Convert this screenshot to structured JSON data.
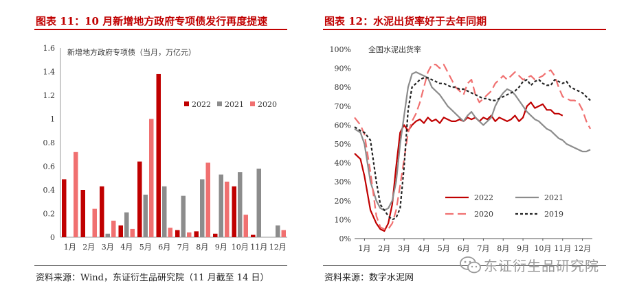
{
  "left_panel": {
    "title": "图表 11：10 月新增地方政府专项债发行再度提速",
    "source": "资料来源：Wind，东证衍生品研究院（11 月截至 14 日）"
  },
  "right_panel": {
    "title": "图表 12：水泥出货率好于去年同期",
    "source": "资料来源：数字水泥网"
  },
  "watermark": {
    "text": "东证衍生品研究院",
    "icon": "wechat-icon"
  },
  "chart_data": [
    {
      "type": "bar",
      "title": "新增地方政府专项债（当月，万亿元）",
      "categories": [
        "1月",
        "2月",
        "3月",
        "4月",
        "5月",
        "6月",
        "7月",
        "8月",
        "9月",
        "10月",
        "11月",
        "12月"
      ],
      "ylim": [
        0,
        1.6
      ],
      "yticks": [
        0,
        0.2,
        0.4,
        0.6,
        0.8,
        1,
        1.2,
        1.4,
        1.6
      ],
      "ytick_labels": [
        "0",
        "0.2",
        "0.4",
        "0.6",
        "0.8",
        "1",
        "1.2",
        "1.4",
        "1.6"
      ],
      "legend_position": "right",
      "series": [
        {
          "name": "2022",
          "color": "#c00000",
          "values": [
            0.49,
            0.4,
            0.43,
            0.1,
            0.64,
            1.38,
            0.06,
            0.05,
            0.03,
            0.43,
            0.02,
            null
          ]
        },
        {
          "name": "2021",
          "color": "#8c8c8c",
          "values": [
            0.0,
            0.0,
            0.03,
            0.21,
            0.36,
            0.43,
            0.35,
            0.49,
            0.53,
            0.55,
            0.58,
            0.1
          ]
        },
        {
          "name": "2020",
          "color": "#f07070",
          "values": [
            0.72,
            0.24,
            0.14,
            0.07,
            1.0,
            0.08,
            0.04,
            0.63,
            0.47,
            0.19,
            null,
            0.06
          ]
        }
      ]
    },
    {
      "type": "line",
      "title": "全国水泥出货率",
      "x_labels": [
        "1月",
        "2月",
        "3月",
        "4月",
        "5月",
        "6月",
        "7月",
        "8月",
        "9月",
        "10月",
        "11月",
        "12月"
      ],
      "x_range": [
        0.5,
        12.5
      ],
      "ylim": [
        0,
        100
      ],
      "yticks": [
        0,
        10,
        20,
        30,
        40,
        50,
        60,
        70,
        80,
        90,
        100
      ],
      "ytick_labels": [
        "0%",
        "10%",
        "20%",
        "30%",
        "40%",
        "50%",
        "60%",
        "70%",
        "80%",
        "90%",
        "100%"
      ],
      "legend_position": "bottom-center",
      "series": [
        {
          "name": "2022",
          "color": "#c00000",
          "dash": "solid",
          "x": [
            0.5,
            0.8,
            1.0,
            1.3,
            1.6,
            1.8,
            2.0,
            2.2,
            2.4,
            2.6,
            2.8,
            3.0,
            3.2,
            3.4,
            3.6,
            3.8,
            4.0,
            4.2,
            4.4,
            4.6,
            4.8,
            5.0,
            5.2,
            5.4,
            5.6,
            5.8,
            6.0,
            6.2,
            6.4,
            6.6,
            6.8,
            7.0,
            7.2,
            7.4,
            7.6,
            7.8,
            8.0,
            8.2,
            8.4,
            8.6,
            8.8,
            9.0,
            9.2,
            9.4,
            9.6,
            9.8,
            10.0,
            10.2,
            10.4,
            10.6,
            10.8,
            11.0
          ],
          "y": [
            45,
            42,
            33,
            15,
            8,
            5,
            4,
            8,
            18,
            38,
            56,
            60,
            57,
            60,
            62,
            63,
            61,
            64,
            62,
            63,
            61,
            64,
            63,
            62,
            62,
            63,
            62,
            64,
            63,
            64,
            62,
            64,
            63,
            65,
            62,
            64,
            63,
            62,
            63,
            65,
            62,
            64,
            70,
            72,
            69,
            70,
            71,
            68,
            68,
            66,
            66,
            65
          ]
        },
        {
          "name": "2021",
          "color": "#8c8c8c",
          "dash": "solid",
          "x": [
            0.5,
            0.8,
            1.0,
            1.3,
            1.6,
            1.8,
            2.0,
            2.2,
            2.4,
            2.6,
            2.8,
            3.0,
            3.2,
            3.4,
            3.6,
            3.8,
            4.0,
            4.2,
            4.4,
            4.6,
            4.8,
            5.0,
            5.2,
            5.4,
            5.6,
            5.8,
            6.0,
            6.2,
            6.4,
            6.6,
            6.8,
            7.0,
            7.2,
            7.4,
            7.6,
            7.8,
            8.0,
            8.2,
            8.4,
            8.6,
            8.8,
            9.0,
            9.2,
            9.4,
            9.6,
            9.8,
            10.0,
            10.2,
            10.4,
            10.6,
            10.8,
            11.0,
            11.2,
            11.4,
            11.6,
            11.8,
            12.0,
            12.2,
            12.4
          ],
          "y": [
            58,
            56,
            50,
            30,
            20,
            16,
            15,
            16,
            20,
            30,
            50,
            65,
            80,
            87,
            88,
            87,
            86,
            85,
            80,
            78,
            76,
            73,
            70,
            68,
            66,
            64,
            62,
            65,
            67,
            64,
            62,
            60,
            62,
            64,
            70,
            74,
            77,
            79,
            78,
            76,
            73,
            70,
            67,
            65,
            63,
            62,
            60,
            58,
            57,
            55,
            53,
            52,
            50,
            49,
            48,
            47,
            46,
            46,
            47
          ]
        },
        {
          "name": "2020",
          "color": "#f07070",
          "dash": "long-dash",
          "x": [
            0.5,
            0.8,
            1.0,
            1.3,
            1.6,
            1.8,
            2.0,
            2.2,
            2.4,
            2.6,
            2.8,
            3.0,
            3.2,
            3.4,
            3.6,
            3.8,
            4.0,
            4.2,
            4.4,
            4.6,
            4.8,
            5.0,
            5.2,
            5.4,
            5.6,
            5.8,
            6.0,
            6.2,
            6.4,
            6.6,
            6.8,
            7.0,
            7.2,
            7.4,
            7.6,
            7.8,
            8.0,
            8.2,
            8.4,
            8.6,
            8.8,
            9.0,
            9.2,
            9.4,
            9.6,
            9.8,
            10.0,
            10.2,
            10.4,
            10.6,
            10.8,
            11.0,
            11.2,
            11.4,
            11.6,
            11.8,
            12.0,
            12.2,
            12.4
          ],
          "y": [
            64,
            60,
            55,
            35,
            12,
            6,
            5,
            5,
            8,
            15,
            28,
            42,
            56,
            62,
            66,
            72,
            80,
            88,
            92,
            92,
            90,
            92,
            88,
            84,
            80,
            78,
            76,
            82,
            84,
            76,
            72,
            74,
            76,
            78,
            82,
            84,
            86,
            84,
            86,
            88,
            86,
            84,
            85,
            86,
            84,
            85,
            86,
            88,
            89,
            86,
            80,
            75,
            74,
            73,
            73,
            72,
            68,
            62,
            58
          ]
        },
        {
          "name": "2019",
          "color": "#222222",
          "dash": "short-dash",
          "x": [
            0.5,
            0.8,
            1.0,
            1.3,
            1.6,
            1.8,
            2.0,
            2.2,
            2.4,
            2.6,
            2.8,
            3.0,
            3.2,
            3.4,
            3.6,
            3.8,
            4.0,
            4.2,
            4.4,
            4.6,
            4.8,
            5.0,
            5.2,
            5.4,
            5.6,
            5.8,
            6.0,
            6.2,
            6.4,
            6.6,
            6.8,
            7.0,
            7.2,
            7.4,
            7.6,
            7.8,
            8.0,
            8.2,
            8.4,
            8.6,
            8.8,
            9.0,
            9.2,
            9.4,
            9.6,
            9.8,
            10.0,
            10.2,
            10.4,
            10.6,
            10.8,
            11.0,
            11.2,
            11.4,
            11.6,
            11.8,
            12.0,
            12.2,
            12.4
          ],
          "y": [
            59,
            57,
            56,
            52,
            30,
            18,
            15,
            12,
            10,
            11,
            16,
            38,
            68,
            80,
            82,
            84,
            85,
            85,
            84,
            83,
            82,
            82,
            81,
            80,
            80,
            79,
            79,
            78,
            77,
            76,
            75,
            74,
            74,
            73,
            73,
            74,
            75,
            76,
            77,
            78,
            80,
            83,
            84,
            81,
            83,
            84,
            82,
            81,
            81,
            84,
            83,
            82,
            83,
            80,
            79,
            78,
            77,
            75,
            73
          ]
        }
      ]
    }
  ]
}
